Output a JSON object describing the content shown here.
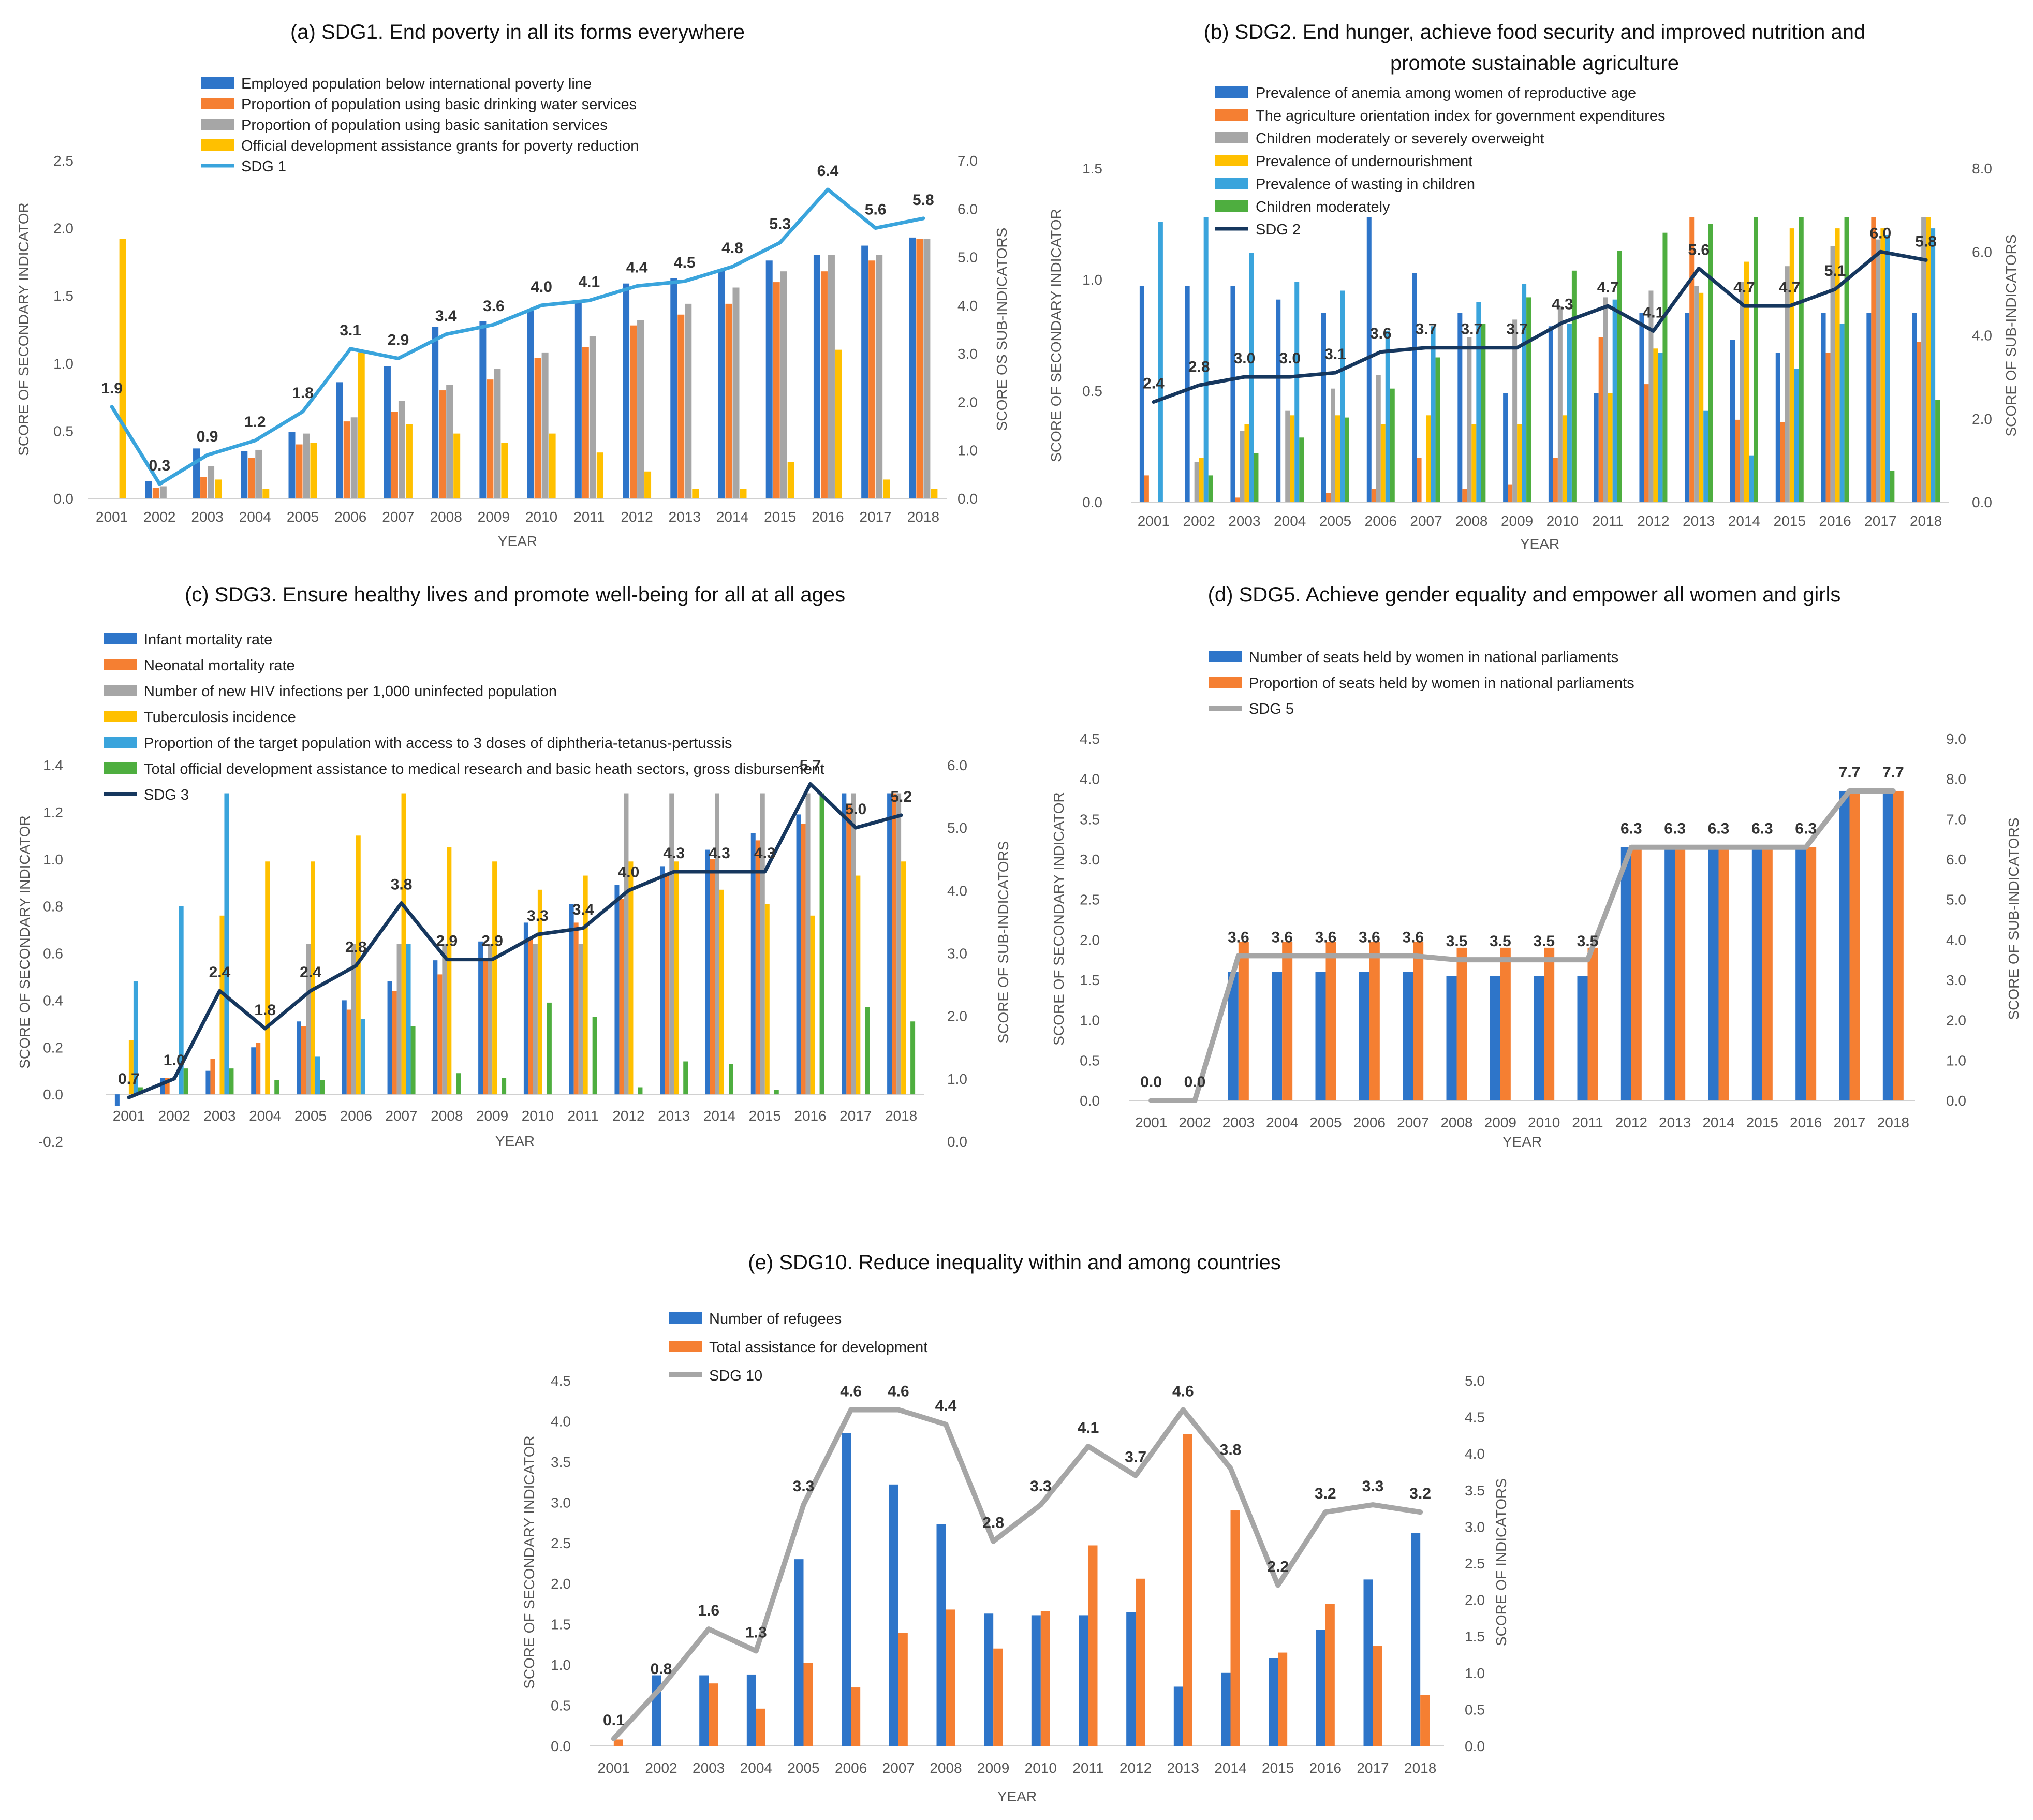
{
  "chart_data": [
    {
      "type": "bar",
      "id": "a",
      "title": "(a) SDG1. End poverty in all its forms everywhere",
      "xlabel": "YEAR",
      "ylabel": "SCORE OF SECONDARY INDICATOR",
      "ylabel_right": "SCORE OS SUB-INDICATORS",
      "ylim": [
        0,
        2.5
      ],
      "yticks": [
        "0.0",
        "0.5",
        "1.0",
        "1.5",
        "2.0",
        "2.5"
      ],
      "ylim_right": [
        0,
        7
      ],
      "yticks_right": [
        "0.0",
        "1.0",
        "2.0",
        "3.0",
        "4.0",
        "5.0",
        "6.0",
        "7.0"
      ],
      "categories": [
        "2001",
        "2002",
        "2003",
        "2004",
        "2005",
        "2006",
        "2007",
        "2008",
        "2009",
        "2010",
        "2011",
        "2012",
        "2013",
        "2014",
        "2015",
        "2016",
        "2017",
        "2018"
      ],
      "series": [
        {
          "name": "Employed population below international poverty line",
          "color": "#2E75C9",
          "values": [
            0,
            0.13,
            0.37,
            0.35,
            0.49,
            0.86,
            0.98,
            1.27,
            1.31,
            1.39,
            1.47,
            1.59,
            1.63,
            1.69,
            1.76,
            1.8,
            1.87,
            1.93
          ]
        },
        {
          "name": "Proportion of population using basic drinking water services",
          "color": "#F57F32",
          "values": [
            0,
            0.08,
            0.16,
            0.3,
            0.4,
            0.57,
            0.64,
            0.8,
            0.88,
            1.04,
            1.12,
            1.28,
            1.36,
            1.44,
            1.6,
            1.68,
            1.76,
            1.92
          ]
        },
        {
          "name": "Proportion of population using basic sanitation services",
          "color": "#A6A6A6",
          "values": [
            0,
            0.09,
            0.24,
            0.36,
            0.48,
            0.6,
            0.72,
            0.84,
            0.96,
            1.08,
            1.2,
            1.32,
            1.44,
            1.56,
            1.68,
            1.8,
            1.8,
            1.92
          ]
        },
        {
          "name": "Official development assistance grants for poverty reduction",
          "color": "#FFC000",
          "values": [
            1.92,
            0,
            0.14,
            0.07,
            0.41,
            1.08,
            0.55,
            0.48,
            0.41,
            0.48,
            0.34,
            0.2,
            0.07,
            0.07,
            0.27,
            1.1,
            0.14,
            0.07
          ]
        }
      ],
      "line": {
        "name": "SDG 1",
        "color": "#3AA4DC",
        "width": 7,
        "values": [
          1.9,
          0.3,
          0.9,
          1.2,
          1.8,
          3.1,
          2.9,
          3.4,
          3.6,
          4.0,
          4.1,
          4.4,
          4.5,
          4.8,
          5.3,
          6.4,
          5.6,
          5.8
        ]
      },
      "line_labels": [
        "1.9",
        "0.3",
        "0.9",
        "1.2",
        "1.8",
        "3.1",
        "2.9",
        "3.4",
        "3.6",
        "4.0",
        "4.1",
        "4.4",
        "4.5",
        "4.8",
        "5.3",
        "6.4",
        "5.6",
        "5.8"
      ]
    },
    {
      "type": "bar",
      "id": "b",
      "title": "(b) SDG2. End hunger, achieve food security and improved nutrition and",
      "title2": "promote sustainable agriculture",
      "xlabel": "YEAR",
      "ylabel": "SCORE OF SECONDARY INDICATOR",
      "ylabel_right": "SCORE OF SUB-INDICATORS",
      "ylim": [
        0,
        1.5
      ],
      "yticks": [
        "0.0",
        "0.5",
        "1.0",
        "1.5"
      ],
      "ylim_right": [
        0,
        8
      ],
      "yticks_right": [
        "0.0",
        "2.0",
        "4.0",
        "6.0",
        "8.0"
      ],
      "categories": [
        "2001",
        "2002",
        "2003",
        "2004",
        "2005",
        "2006",
        "2007",
        "2008",
        "2009",
        "2010",
        "2011",
        "2012",
        "2013",
        "2014",
        "2015",
        "2016",
        "2017",
        "2018"
      ],
      "series": [
        {
          "name": "Prevalence of anemia among women of reproductive age",
          "color": "#2E75C9",
          "values": [
            0.97,
            0.97,
            0.97,
            0.91,
            0.85,
            1.28,
            1.03,
            0.85,
            0.49,
            0.79,
            0.49,
            0.85,
            0.85,
            0.73,
            0.67,
            0.85,
            0.85,
            0.85
          ]
        },
        {
          "name": "The agriculture orientation index for government expenditures",
          "color": "#F57F32",
          "values": [
            0.12,
            0,
            0.02,
            0,
            0.04,
            0.06,
            0.2,
            0.06,
            0.08,
            0.2,
            0.74,
            0.53,
            1.28,
            0.37,
            0.36,
            0.67,
            1.28,
            0.72
          ]
        },
        {
          "name": "Children moderately or severely overweight",
          "color": "#A6A6A6",
          "values": [
            0,
            0.18,
            0.32,
            0.41,
            0.51,
            0.57,
            0,
            0.74,
            0.82,
            0.88,
            0.92,
            0.95,
            0.97,
            0.99,
            1.06,
            1.15,
            1.18,
            1.28
          ]
        },
        {
          "name": "Prevalence of undernourishment",
          "color": "#FFC000",
          "values": [
            0,
            0.2,
            0.35,
            0.39,
            0.39,
            0.35,
            0.39,
            0.35,
            0.35,
            0.39,
            0.49,
            0.69,
            0.94,
            1.08,
            1.23,
            1.23,
            1.23,
            1.28
          ]
        },
        {
          "name": "Prevalence of wasting in children",
          "color": "#3AA4DC",
          "values": [
            1.26,
            1.28,
            1.12,
            0.99,
            0.95,
            0.77,
            0.79,
            0.9,
            0.98,
            0.8,
            0.91,
            0.67,
            0.41,
            0.21,
            0.6,
            0.8,
            1.2,
            1.23
          ]
        },
        {
          "name": "Children moderately",
          "color": "#4EAE3F",
          "values": [
            0,
            0.12,
            0.22,
            0.29,
            0.38,
            0.51,
            0.65,
            0.8,
            0.92,
            1.04,
            1.13,
            1.21,
            1.25,
            1.28,
            1.28,
            1.28,
            0.14,
            0.46
          ]
        }
      ],
      "line": {
        "name": "SDG 2",
        "color": "#16375E",
        "width": 7,
        "values": [
          2.4,
          2.8,
          3.0,
          3.0,
          3.1,
          3.6,
          3.7,
          3.7,
          3.7,
          4.3,
          4.7,
          4.1,
          5.6,
          4.7,
          4.7,
          5.1,
          6.0,
          5.8
        ]
      },
      "line_labels": [
        "2.4",
        "2.8",
        "3.0",
        "3.0",
        "3.1",
        "3.6",
        "3.7",
        "3.7",
        "3.7",
        "4.3",
        "4.7",
        "4.1",
        "5.6",
        "4.7",
        "4.7",
        "5.1",
        "6.0",
        "5.8"
      ]
    },
    {
      "type": "bar",
      "id": "c",
      "title": "(c) SDG3. Ensure healthy lives and promote well-being for all at all ages",
      "xlabel": "YEAR",
      "ylabel": "SCORE OF SECONDARY INDICATOR",
      "ylabel_right": "SCORE OF SUB-INDICATORS",
      "ylim": [
        -0.2,
        1.4
      ],
      "yticks": [
        "-0.2",
        "0.0",
        "0.2",
        "0.4",
        "0.6",
        "0.8",
        "1.0",
        "1.2",
        "1.4"
      ],
      "ylim_right": [
        0,
        6
      ],
      "yticks_right": [
        "0.0",
        "1.0",
        "2.0",
        "3.0",
        "4.0",
        "5.0",
        "6.0"
      ],
      "categories": [
        "2001",
        "2002",
        "2003",
        "2004",
        "2005",
        "2006",
        "2007",
        "2008",
        "2009",
        "2010",
        "2011",
        "2012",
        "2013",
        "2014",
        "2015",
        "2016",
        "2017",
        "2018"
      ],
      "series": [
        {
          "name": "Infant mortality rate",
          "color": "#2E75C9",
          "values": [
            -0.05,
            0.07,
            0.1,
            0.2,
            0.31,
            0.4,
            0.48,
            0.57,
            0.65,
            0.73,
            0.81,
            0.89,
            0.97,
            1.04,
            1.11,
            1.19,
            1.28,
            1.28
          ]
        },
        {
          "name": "Neonatal mortality rate",
          "color": "#F57F32",
          "values": [
            0,
            0.07,
            0.15,
            0.22,
            0.29,
            0.36,
            0.44,
            0.51,
            0.58,
            0.66,
            0.73,
            0.83,
            0.93,
            1.0,
            1.08,
            1.15,
            1.23,
            1.28
          ]
        },
        {
          "name": "Number of new HIV infections per 1,000 uninfected population",
          "color": "#A6A6A6",
          "values": [
            0,
            0,
            0,
            0,
            0.64,
            0.64,
            0.64,
            0.64,
            0.64,
            0.64,
            0.64,
            1.28,
            1.28,
            1.28,
            1.28,
            1.28,
            1.28,
            1.28
          ]
        },
        {
          "name": "Tuberculosis incidence",
          "color": "#FFC000",
          "values": [
            0.23,
            0,
            0.76,
            0.99,
            0.99,
            1.1,
            1.28,
            1.05,
            0.99,
            0.87,
            0.93,
            0.99,
            0.99,
            0.87,
            0.81,
            0.76,
            0.93,
            0.99
          ]
        },
        {
          "name": "Proportion of the target population with access to 3 doses of diphtheria-tetanus-pertussis",
          "color": "#3AA4DC",
          "values": [
            0.48,
            0.8,
            1.28,
            0,
            0.16,
            0.32,
            0.64,
            0,
            0,
            0,
            0,
            0,
            0,
            0,
            0,
            0,
            0,
            0
          ]
        },
        {
          "name": "Total official development assistance to medical research and basic heath sectors, gross disbursement",
          "color": "#4EAE3F",
          "values": [
            0.03,
            0.11,
            0.11,
            0.06,
            0.06,
            0,
            0.29,
            0.09,
            0.07,
            0.39,
            0.33,
            0.03,
            0.14,
            0.13,
            0.02,
            1.28,
            0.37,
            0.31
          ]
        }
      ],
      "line": {
        "name": "SDG 3",
        "color": "#16375E",
        "width": 7,
        "values": [
          0.7,
          1.0,
          2.4,
          1.8,
          2.4,
          2.8,
          3.8,
          2.9,
          2.9,
          3.3,
          3.4,
          4.0,
          4.3,
          4.3,
          4.3,
          5.7,
          5.0,
          5.2
        ]
      },
      "line_labels": [
        "0.7",
        "1.0",
        "2.4",
        "1.8",
        "2.4",
        "2.8",
        "3.8",
        "2.9",
        "2.9",
        "3.3",
        "3.4",
        "4.0",
        "4.3",
        "4.3",
        "4.3",
        "5.7",
        "5.0",
        "5.2"
      ]
    },
    {
      "type": "bar",
      "id": "d",
      "title": "(d) SDG5. Achieve gender equality and empower all women and girls",
      "xlabel": "YEAR",
      "ylabel": "SCORE OF SECONDARY INDICATOR",
      "ylabel_right": "SCORE OF SUB-INDICATORS",
      "ylim": [
        0,
        4.5
      ],
      "yticks": [
        "0.0",
        "0.5",
        "1.0",
        "1.5",
        "2.0",
        "2.5",
        "3.0",
        "3.5",
        "4.0",
        "4.5"
      ],
      "ylim_right": [
        0,
        9
      ],
      "yticks_right": [
        "0.0",
        "1.0",
        "2.0",
        "3.0",
        "4.0",
        "5.0",
        "6.0",
        "7.0",
        "8.0",
        "9.0"
      ],
      "categories": [
        "2001",
        "2002",
        "2003",
        "2004",
        "2005",
        "2006",
        "2007",
        "2008",
        "2009",
        "2010",
        "2011",
        "2012",
        "2013",
        "2014",
        "2015",
        "2016",
        "2017",
        "2018"
      ],
      "series": [
        {
          "name": "Number of seats held by women in national parliaments",
          "color": "#2E75C9",
          "values": [
            0,
            0,
            1.6,
            1.6,
            1.6,
            1.6,
            1.6,
            1.55,
            1.55,
            1.55,
            1.55,
            3.15,
            3.15,
            3.15,
            3.15,
            3.15,
            3.85,
            3.85
          ]
        },
        {
          "name": "Proportion of seats held by women in national parliaments",
          "color": "#F57F32",
          "values": [
            0,
            0,
            1.97,
            1.97,
            1.97,
            1.97,
            1.97,
            1.9,
            1.9,
            1.9,
            1.9,
            3.15,
            3.15,
            3.15,
            3.15,
            3.15,
            3.85,
            3.85
          ]
        }
      ],
      "line": {
        "name": "SDG 5",
        "color": "#A6A6A6",
        "width": 10,
        "values": [
          0,
          0,
          3.6,
          3.6,
          3.6,
          3.6,
          3.6,
          3.5,
          3.5,
          3.5,
          3.5,
          6.3,
          6.3,
          6.3,
          6.3,
          6.3,
          7.7,
          7.7
        ]
      },
      "line_labels": [
        "0.0",
        "0.0",
        "3.6",
        "3.6",
        "3.6",
        "3.6",
        "3.6",
        "3.5",
        "3.5",
        "3.5",
        "3.5",
        "6.3",
        "6.3",
        "6.3",
        "6.3",
        "6.3",
        "7.7",
        "7.7"
      ]
    },
    {
      "type": "bar",
      "id": "e",
      "title": "(e) SDG10. Reduce inequality within and among countries",
      "xlabel": "YEAR",
      "ylabel": "SCORE OF SECONDARY INDICATOR",
      "ylabel_right": "SCORE OF INDICATORS",
      "ylim": [
        0,
        4.5
      ],
      "yticks": [
        "0.0",
        "0.5",
        "1.0",
        "1.5",
        "2.0",
        "2.5",
        "3.0",
        "3.5",
        "4.0",
        "4.5"
      ],
      "ylim_right": [
        0,
        5
      ],
      "yticks_right": [
        "0.0",
        "0.5",
        "1.0",
        "1.5",
        "2.0",
        "2.5",
        "3.0",
        "3.5",
        "4.0",
        "4.5",
        "5.0"
      ],
      "categories": [
        "2001",
        "2002",
        "2003",
        "2004",
        "2005",
        "2006",
        "2007",
        "2008",
        "2009",
        "2010",
        "2011",
        "2012",
        "2013",
        "2014",
        "2015",
        "2016",
        "2017",
        "2018"
      ],
      "series": [
        {
          "name": "Number of refugees",
          "color": "#2E75C9",
          "values": [
            0,
            0.87,
            0.87,
            0.88,
            2.3,
            3.85,
            3.22,
            2.73,
            1.63,
            1.61,
            1.61,
            1.65,
            0.73,
            0.9,
            1.08,
            1.43,
            2.05,
            2.62
          ]
        },
        {
          "name": "Total assistance for development",
          "color": "#F57F32",
          "values": [
            0.08,
            0,
            0.77,
            0.46,
            1.02,
            0.72,
            1.39,
            1.68,
            1.2,
            1.66,
            2.47,
            2.06,
            3.84,
            2.9,
            1.15,
            1.75,
            1.23,
            0.63
          ]
        }
      ],
      "line": {
        "name": "SDG 10",
        "color": "#A6A6A6",
        "width": 10,
        "values": [
          0.1,
          0.8,
          1.6,
          1.3,
          3.3,
          4.6,
          4.6,
          4.4,
          2.8,
          3.3,
          4.1,
          3.7,
          4.6,
          3.8,
          2.2,
          3.2,
          3.3,
          3.2
        ]
      },
      "line_labels": [
        "0.1",
        "0.8",
        "1.6",
        "1.3",
        "3.3",
        "4.6",
        "4.6",
        "4.4",
        "2.8",
        "3.3",
        "4.1",
        "3.7",
        "4.6",
        "3.8",
        "2.2",
        "3.2",
        "3.3",
        "3.2"
      ]
    }
  ]
}
